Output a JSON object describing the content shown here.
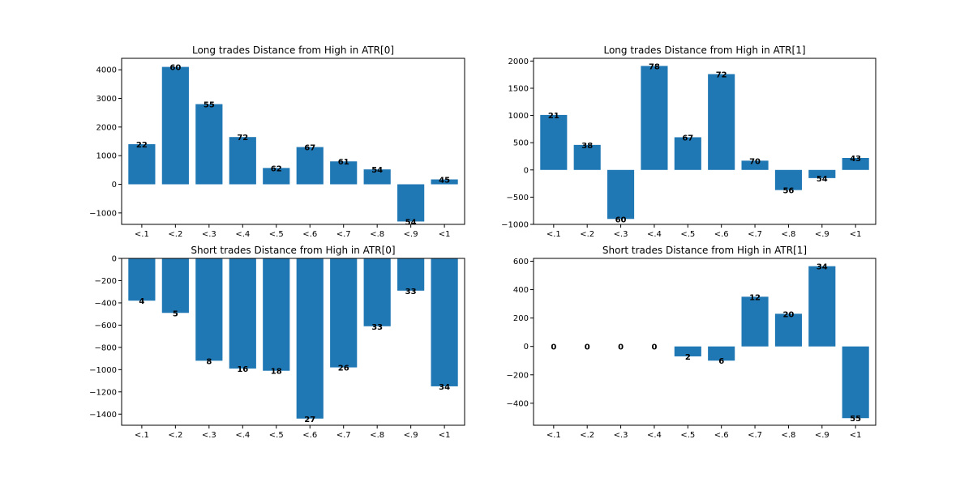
{
  "chart_data": [
    {
      "type": "bar",
      "title": "Long trades Distance from High in ATR[0]",
      "categories": [
        "<.1",
        "<.2",
        "<.3",
        "<.4",
        "<.5",
        "<.6",
        "<.7",
        "<.8",
        "<.9",
        "<1"
      ],
      "values": [
        1400,
        4100,
        2800,
        1650,
        570,
        1300,
        800,
        520,
        -1300,
        170
      ],
      "labels": [
        "22",
        "60",
        "55",
        "72",
        "62",
        "67",
        "61",
        "54",
        "54",
        "45"
      ],
      "ylim": [
        -1400,
        4400
      ],
      "yticks": [
        -1000,
        0,
        1000,
        2000,
        3000,
        4000
      ],
      "color": "#1f77b4"
    },
    {
      "type": "bar",
      "title": "Long trades Distance from High in ATR[1]",
      "categories": [
        "<.1",
        "<.2",
        "<.3",
        "<.4",
        "<.5",
        "<.6",
        "<.7",
        "<.8",
        "<.9",
        "<1"
      ],
      "values": [
        1010,
        460,
        -900,
        1910,
        600,
        1760,
        170,
        -370,
        -150,
        220
      ],
      "labels": [
        "21",
        "38",
        "60",
        "78",
        "67",
        "72",
        "70",
        "56",
        "54",
        "43"
      ],
      "ylim": [
        -1000,
        2050
      ],
      "yticks": [
        -1000,
        -500,
        0,
        500,
        1000,
        1500,
        2000
      ],
      "color": "#1f77b4"
    },
    {
      "type": "bar",
      "title": "Short trades Distance from High in ATR[0]",
      "categories": [
        "<.1",
        "<.2",
        "<.3",
        "<.4",
        "<.5",
        "<.6",
        "<.7",
        "<.8",
        "<.9",
        "<1"
      ],
      "values": [
        -380,
        -490,
        -920,
        -990,
        -1010,
        -1440,
        -980,
        -610,
        -290,
        -1150
      ],
      "labels": [
        "4",
        "5",
        "8",
        "16",
        "18",
        "27",
        "26",
        "33",
        "33",
        "34"
      ],
      "ylim": [
        -1500,
        0
      ],
      "yticks": [
        -1400,
        -1200,
        -1000,
        -800,
        -600,
        -400,
        -200,
        0
      ],
      "color": "#1f77b4"
    },
    {
      "type": "bar",
      "title": "Short trades Distance from High in ATR[1]",
      "categories": [
        "<.1",
        "<.2",
        "<.3",
        "<.4",
        "<.5",
        "<.6",
        "<.7",
        "<.8",
        "<.9",
        "<1"
      ],
      "values": [
        0,
        0,
        0,
        0,
        -70,
        -100,
        350,
        230,
        565,
        -505
      ],
      "labels": [
        "0",
        "0",
        "0",
        "0",
        "2",
        "6",
        "12",
        "20",
        "34",
        "55"
      ],
      "ylim": [
        -555,
        620
      ],
      "yticks": [
        -400,
        -200,
        0,
        200,
        400,
        600
      ],
      "color": "#1f77b4"
    }
  ]
}
